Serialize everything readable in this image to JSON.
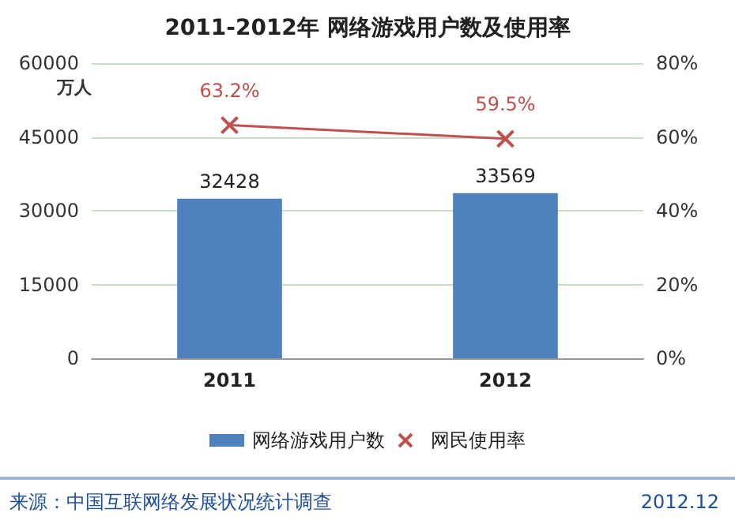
{
  "chart_data": {
    "type": "bar",
    "title": "2011-2012年 网络游戏用户数及使用率",
    "ylabel": "万人",
    "categories": [
      "2011",
      "2012"
    ],
    "series": [
      {
        "name": "网络游戏用户数",
        "color": "#4f81bd",
        "values": [
          32428,
          33569
        ],
        "value_labels": [
          "32428",
          "33569"
        ]
      },
      {
        "name": "网民使用率",
        "type": "line",
        "axis": "y2",
        "color": "#c0504d",
        "values": [
          63.2,
          59.5
        ],
        "value_labels": [
          "63.2%",
          "59.5%"
        ],
        "marker": "cross"
      }
    ],
    "ylim": [
      0,
      60000
    ],
    "yticks": [
      0,
      15000,
      30000,
      45000,
      60000
    ],
    "y2lim": [
      0,
      80
    ],
    "y2ticks": [
      {
        "value": 0,
        "label": "0%"
      },
      {
        "value": 20,
        "label": "20%"
      },
      {
        "value": 40,
        "label": "40%"
      },
      {
        "value": 60,
        "label": "60%"
      },
      {
        "value": 80,
        "label": "80%"
      }
    ],
    "grid": "y",
    "legend": "bottom",
    "annotations": [
      "来源：中国互联网络发展状况统计调查",
      "2012.12"
    ]
  }
}
